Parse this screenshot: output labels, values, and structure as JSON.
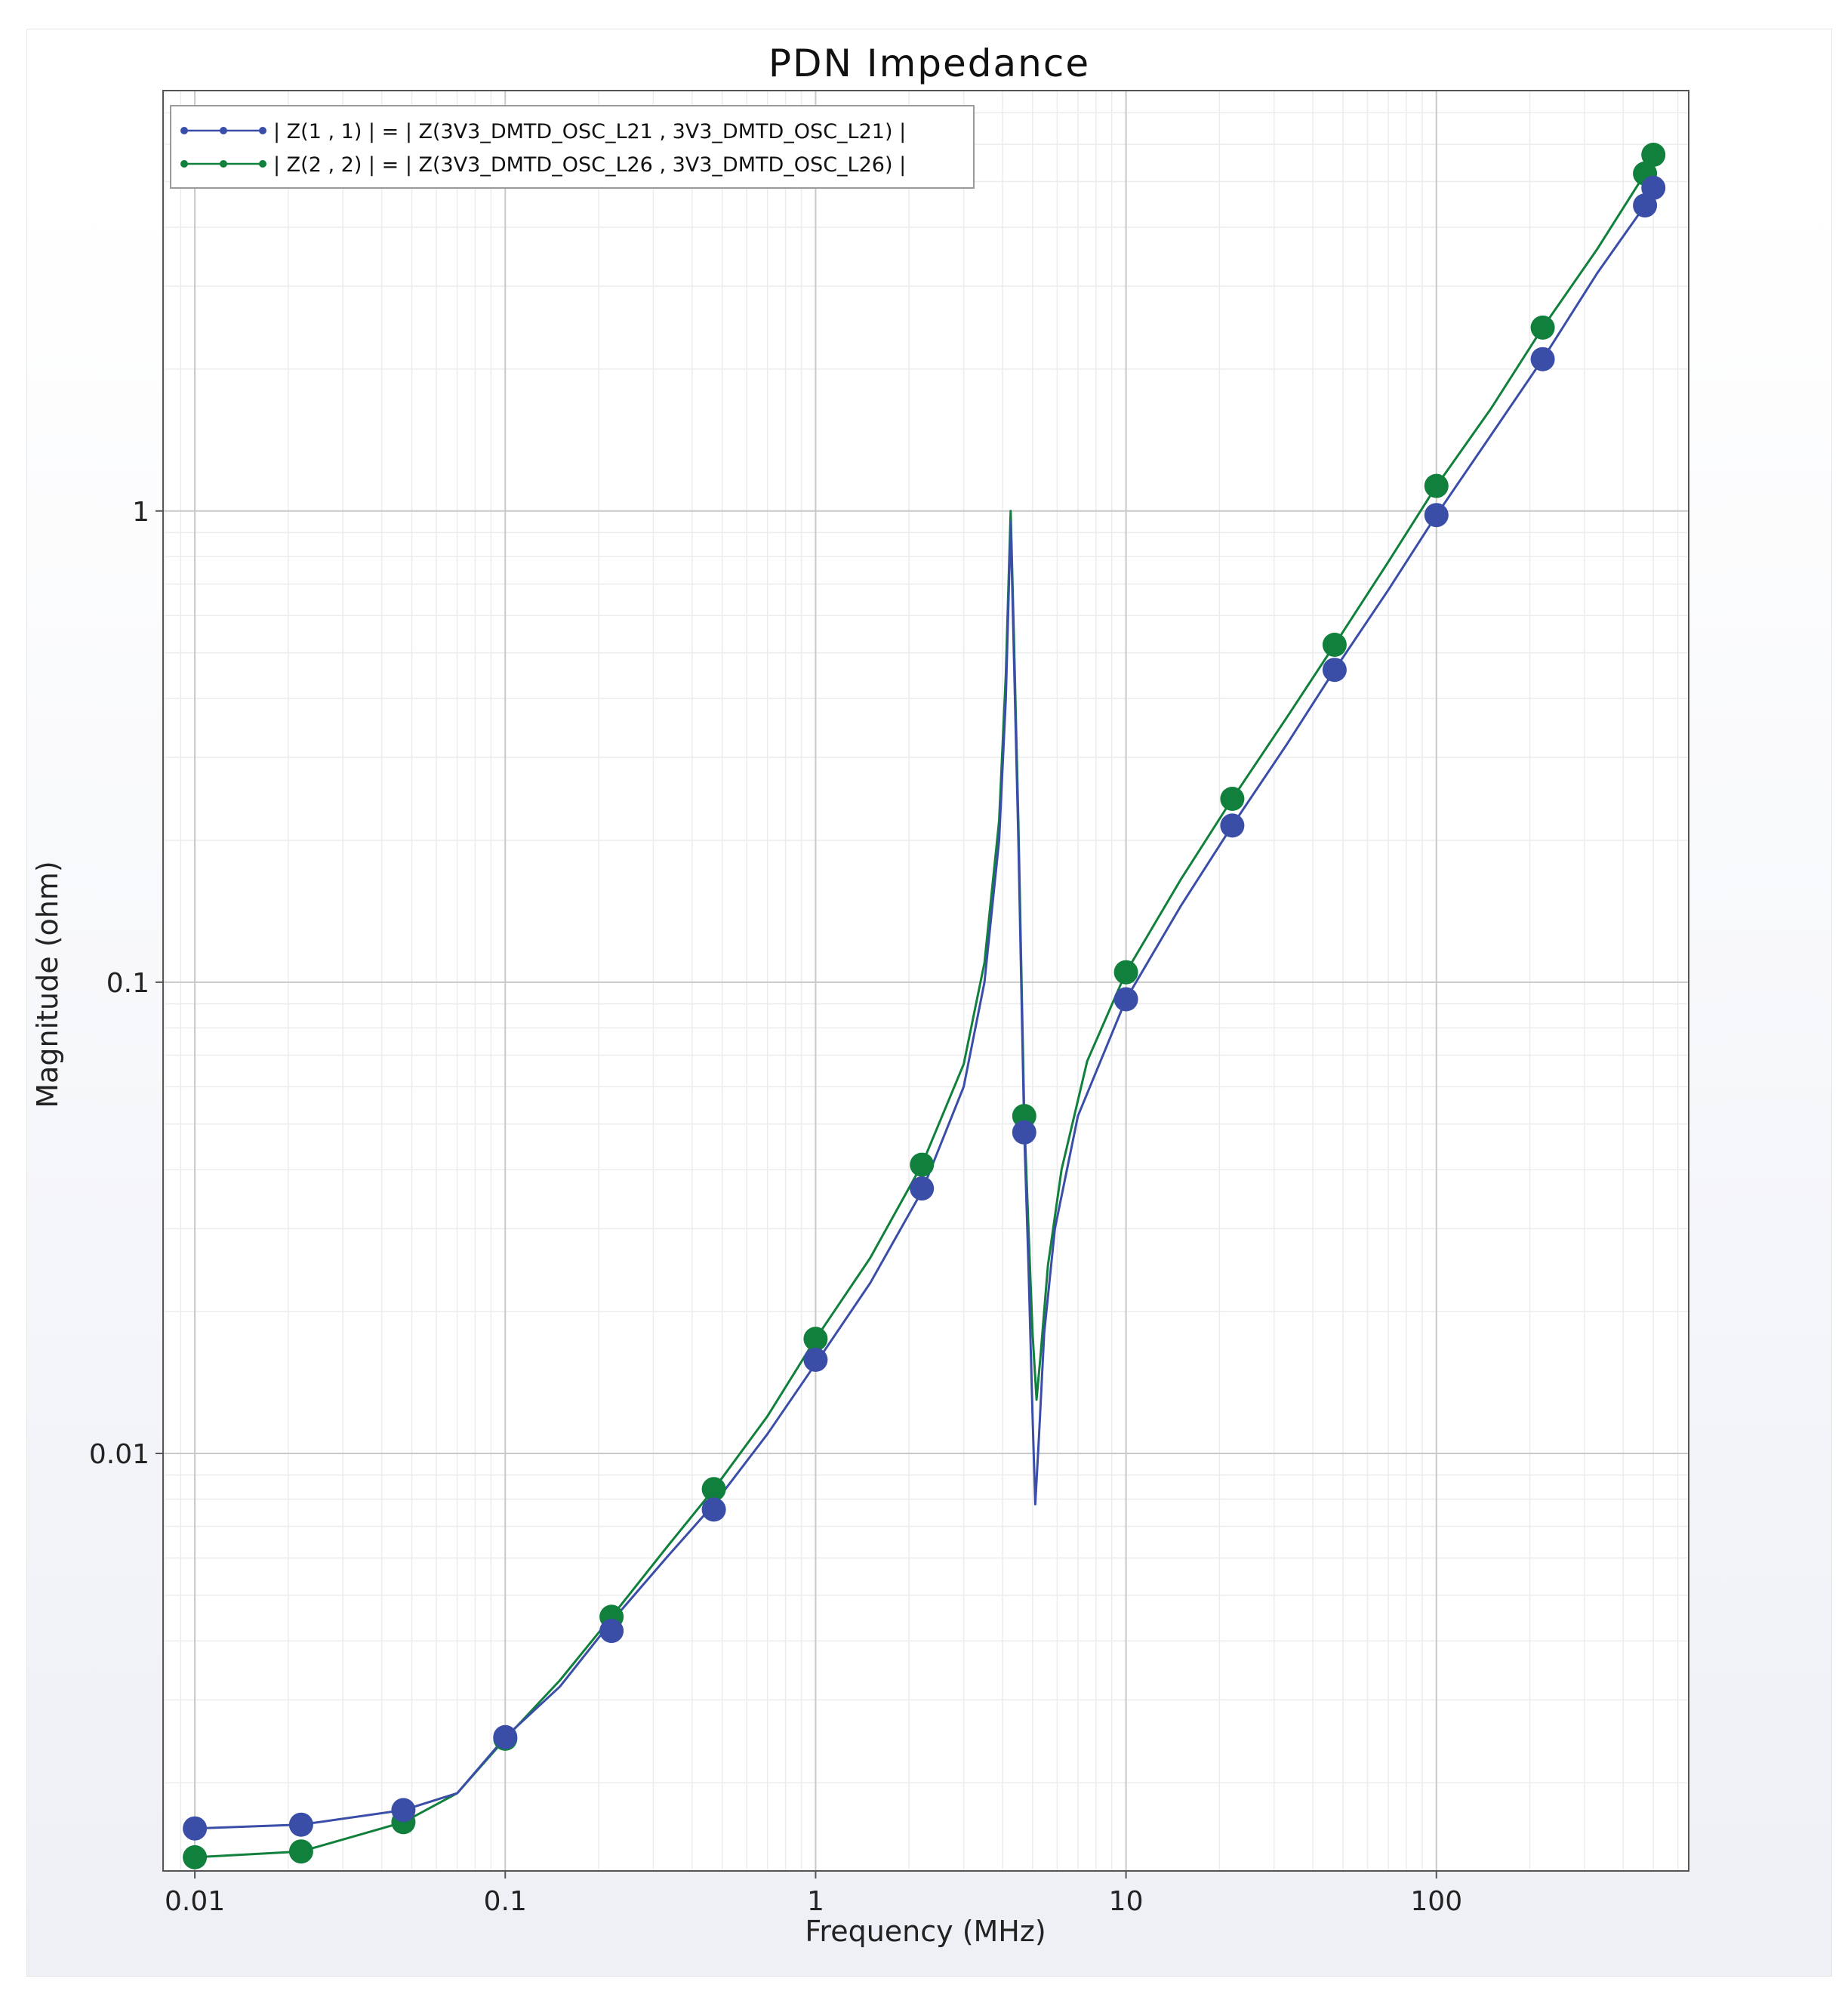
{
  "chart_data": {
    "type": "line",
    "title": "PDN Impedance",
    "xlabel": "Frequency (MHz)",
    "ylabel": "Magnitude (ohm)",
    "x_scale": "log",
    "y_scale": "log",
    "xlim": [
      0.0079,
      650
    ],
    "ylim": [
      0.0013,
      7.8
    ],
    "x_ticks": [
      {
        "value": 0.01,
        "label": "0.01"
      },
      {
        "value": 0.1,
        "label": "0.1"
      },
      {
        "value": 1,
        "label": "1"
      },
      {
        "value": 10,
        "label": "10"
      },
      {
        "value": 100,
        "label": "100"
      }
    ],
    "y_ticks": [
      {
        "value": 0.01,
        "label": "0.01"
      },
      {
        "value": 0.1,
        "label": "0.1"
      },
      {
        "value": 1,
        "label": "1"
      }
    ],
    "grid": true,
    "legend_position": "top-left",
    "series": [
      {
        "name": "| Z(1 , 1) | = | Z(3V3_DMTD_OSC_L21 , 3V3_DMTD_OSC_L21) |",
        "color": "#3a4ea8",
        "curve": [
          [
            0.01,
            0.0016
          ],
          [
            0.022,
            0.00163
          ],
          [
            0.047,
            0.00175
          ],
          [
            0.07,
            0.0019
          ],
          [
            0.1,
            0.0025
          ],
          [
            0.15,
            0.0032
          ],
          [
            0.22,
            0.0044
          ],
          [
            0.33,
            0.006
          ],
          [
            0.47,
            0.0078
          ],
          [
            0.7,
            0.011
          ],
          [
            1.0,
            0.0155
          ],
          [
            1.5,
            0.023
          ],
          [
            2.2,
            0.036
          ],
          [
            3.0,
            0.06
          ],
          [
            3.5,
            0.1
          ],
          [
            3.9,
            0.2
          ],
          [
            4.1,
            0.4
          ],
          [
            4.25,
            0.95
          ],
          [
            4.35,
            0.5
          ],
          [
            4.5,
            0.2
          ],
          [
            4.7,
            0.048
          ],
          [
            4.85,
            0.025
          ],
          [
            5.0,
            0.012
          ],
          [
            5.1,
            0.0078
          ],
          [
            5.25,
            0.011
          ],
          [
            5.45,
            0.018
          ],
          [
            5.9,
            0.03
          ],
          [
            7.0,
            0.052
          ],
          [
            10,
            0.092
          ],
          [
            15,
            0.145
          ],
          [
            22,
            0.215
          ],
          [
            33,
            0.32
          ],
          [
            47,
            0.46
          ],
          [
            70,
            0.68
          ],
          [
            100,
            0.98
          ],
          [
            150,
            1.45
          ],
          [
            220,
            2.1
          ],
          [
            330,
            3.2
          ],
          [
            470,
            4.45
          ],
          [
            500,
            4.85
          ]
        ],
        "markers": [
          [
            0.01,
            0.0016
          ],
          [
            0.022,
            0.00163
          ],
          [
            0.047,
            0.00175
          ],
          [
            0.1,
            0.0025
          ],
          [
            0.22,
            0.0042
          ],
          [
            0.47,
            0.0076
          ],
          [
            1.0,
            0.0158
          ],
          [
            2.2,
            0.0365
          ],
          [
            4.7,
            0.048
          ],
          [
            10,
            0.092
          ],
          [
            22,
            0.215
          ],
          [
            47,
            0.46
          ],
          [
            100,
            0.98
          ],
          [
            220,
            2.1
          ],
          [
            470,
            4.45
          ],
          [
            500,
            4.85
          ]
        ]
      },
      {
        "name": "| Z(2 , 2) | = | Z(3V3_DMTD_OSC_L26 , 3V3_DMTD_OSC_L26) |",
        "color": "#10803c",
        "curve": [
          [
            0.01,
            0.00139
          ],
          [
            0.022,
            0.00143
          ],
          [
            0.047,
            0.00165
          ],
          [
            0.07,
            0.0019
          ],
          [
            0.1,
            0.00248
          ],
          [
            0.15,
            0.0033
          ],
          [
            0.22,
            0.0045
          ],
          [
            0.33,
            0.0063
          ],
          [
            0.47,
            0.0084
          ],
          [
            0.7,
            0.012
          ],
          [
            1.0,
            0.0175
          ],
          [
            1.5,
            0.026
          ],
          [
            2.2,
            0.041
          ],
          [
            3.0,
            0.067
          ],
          [
            3.5,
            0.11
          ],
          [
            3.9,
            0.22
          ],
          [
            4.1,
            0.45
          ],
          [
            4.25,
            1.0
          ],
          [
            4.35,
            0.55
          ],
          [
            4.5,
            0.22
          ],
          [
            4.7,
            0.052
          ],
          [
            4.85,
            0.03
          ],
          [
            5.0,
            0.018
          ],
          [
            5.15,
            0.013
          ],
          [
            5.3,
            0.016
          ],
          [
            5.6,
            0.025
          ],
          [
            6.2,
            0.04
          ],
          [
            7.5,
            0.068
          ],
          [
            10,
            0.105
          ],
          [
            15,
            0.165
          ],
          [
            22,
            0.245
          ],
          [
            33,
            0.365
          ],
          [
            47,
            0.52
          ],
          [
            70,
            0.78
          ],
          [
            100,
            1.13
          ],
          [
            150,
            1.65
          ],
          [
            220,
            2.45
          ],
          [
            330,
            3.6
          ],
          [
            470,
            5.2
          ],
          [
            500,
            5.7
          ]
        ],
        "markers": [
          [
            0.01,
            0.00139
          ],
          [
            0.022,
            0.00143
          ],
          [
            0.047,
            0.00165
          ],
          [
            0.1,
            0.00248
          ],
          [
            0.22,
            0.0045
          ],
          [
            0.47,
            0.0084
          ],
          [
            1.0,
            0.0175
          ],
          [
            2.2,
            0.041
          ],
          [
            4.7,
            0.052
          ],
          [
            10,
            0.105
          ],
          [
            22,
            0.245
          ],
          [
            47,
            0.52
          ],
          [
            100,
            1.13
          ],
          [
            220,
            2.45
          ],
          [
            470,
            5.2
          ],
          [
            500,
            5.7
          ]
        ]
      }
    ]
  }
}
